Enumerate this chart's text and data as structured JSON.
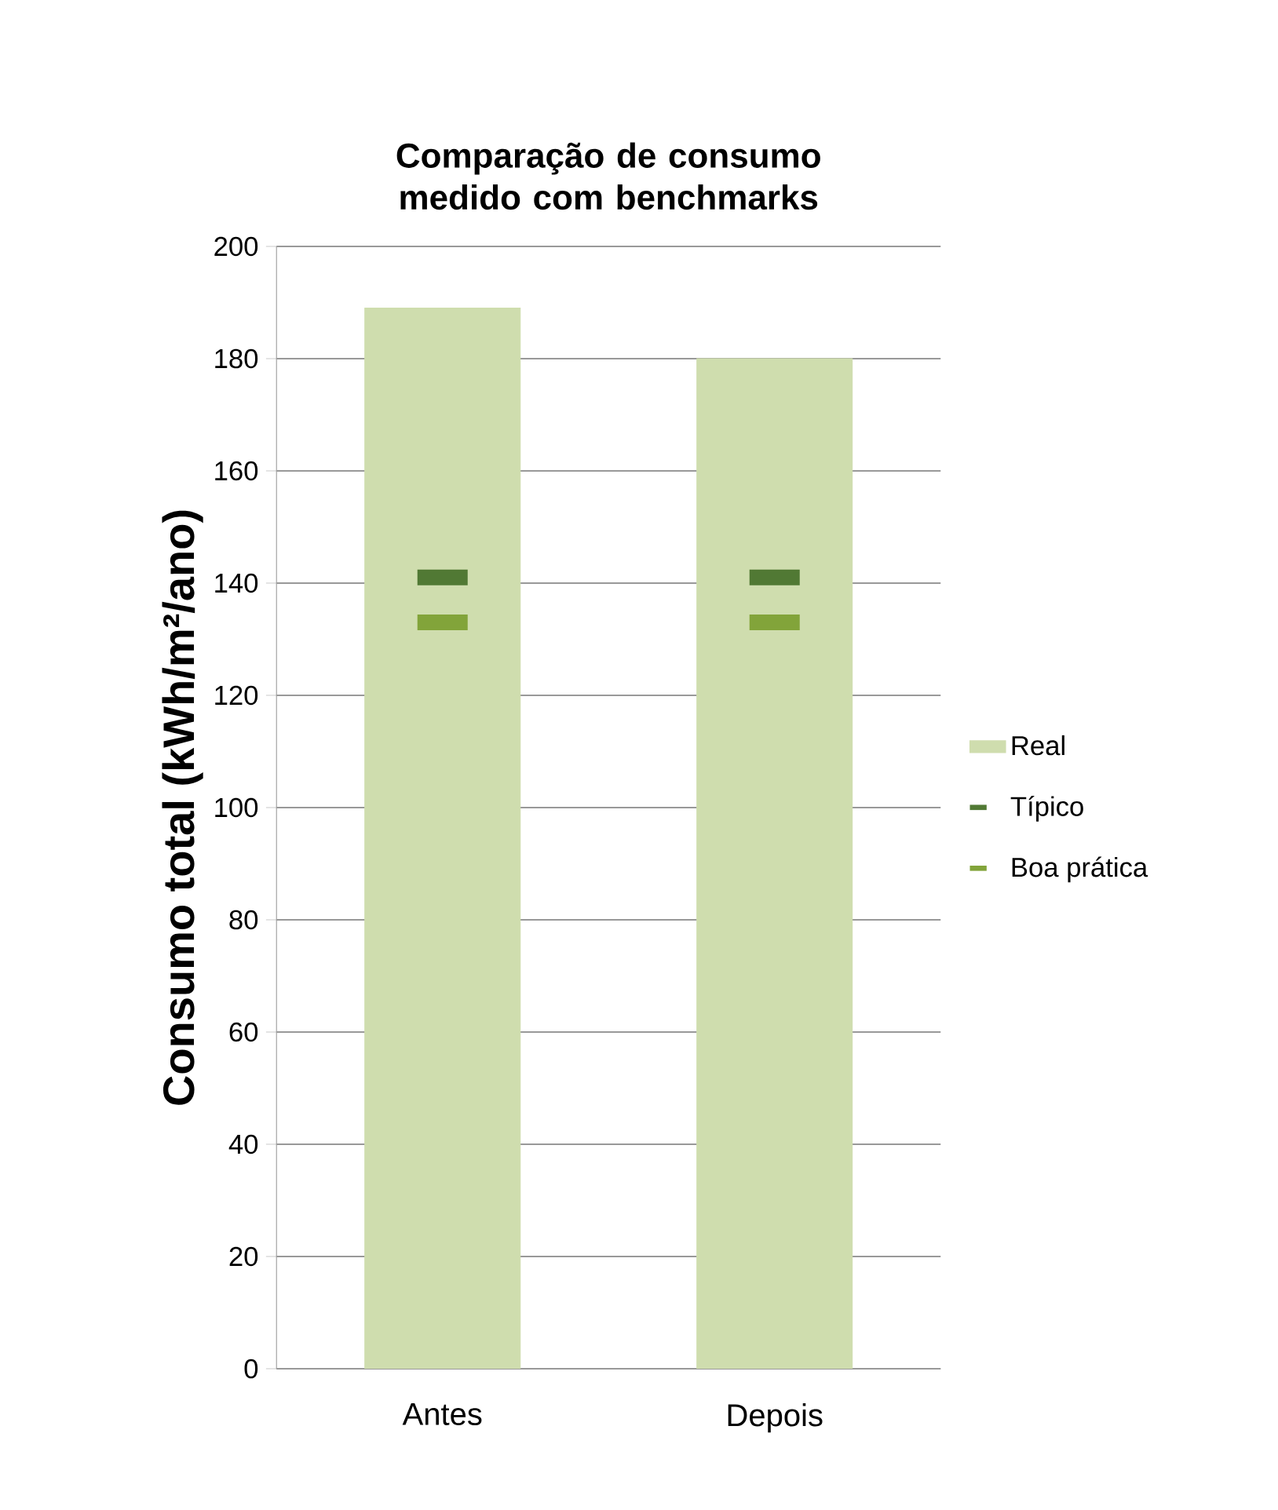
{
  "chart_data": {
    "type": "bar",
    "title": "Comparação de consumo medido com benchmarks",
    "ylabel": "Consumo total (kWh/m²/ano)",
    "categories": [
      "Antes",
      "Depois"
    ],
    "series": [
      {
        "name": "Real",
        "color": "#cfddae",
        "values": [
          189,
          180
        ]
      },
      {
        "name": "Típico",
        "type": "scatter",
        "color": "#517934",
        "x": [
          "Antes",
          "Depois"
        ],
        "values": [
          141,
          141
        ]
      },
      {
        "name": "Boa prática",
        "type": "scatter",
        "color": "#82a43a",
        "x": [
          "Antes",
          "Depois"
        ],
        "values": [
          133,
          133
        ]
      }
    ],
    "ylim": [
      0,
      200
    ],
    "yticks": [
      0,
      20,
      40,
      60,
      80,
      100,
      120,
      140,
      160,
      180,
      200
    ],
    "grid": "y",
    "legend": "right"
  }
}
